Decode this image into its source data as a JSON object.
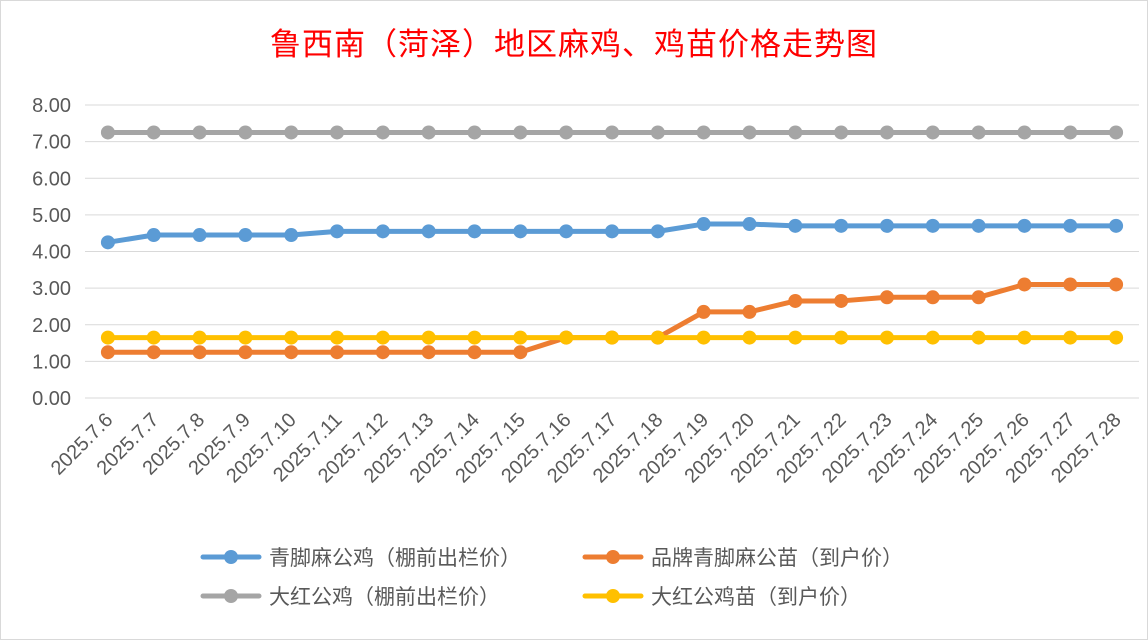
{
  "chart_data": {
    "type": "line",
    "title": "鲁西南（菏泽）地区麻鸡、鸡苗价格走势图",
    "xlabel": "",
    "ylabel": "",
    "ylim": [
      0,
      8
    ],
    "yticks": [
      "0.00",
      "1.00",
      "2.00",
      "3.00",
      "4.00",
      "5.00",
      "6.00",
      "7.00",
      "8.00"
    ],
    "grid": true,
    "legend_position": "bottom",
    "categories": [
      "2025.7.6",
      "2025.7.7",
      "2025.7.8",
      "2025.7.9",
      "2025.7.10",
      "2025.7.11",
      "2025.7.12",
      "2025.7.13",
      "2025.7.14",
      "2025.7.15",
      "2025.7.16",
      "2025.7.17",
      "2025.7.18",
      "2025.7.19",
      "2025.7.20",
      "2025.7.21",
      "2025.7.22",
      "2025.7.23",
      "2025.7.24",
      "2025.7.25",
      "2025.7.26",
      "2025.7.27",
      "2025.7.28"
    ],
    "series": [
      {
        "name": "青脚麻公鸡（棚前出栏价）",
        "color": "#5b9bd5",
        "values": [
          4.25,
          4.45,
          4.45,
          4.45,
          4.45,
          4.55,
          4.55,
          4.55,
          4.55,
          4.55,
          4.55,
          4.55,
          4.55,
          4.75,
          4.75,
          4.7,
          4.7,
          4.7,
          4.7,
          4.7,
          4.7,
          4.7,
          4.7
        ]
      },
      {
        "name": "品牌青脚麻公苗（到户价）",
        "color": "#ed7d31",
        "values": [
          1.25,
          1.25,
          1.25,
          1.25,
          1.25,
          1.25,
          1.25,
          1.25,
          1.25,
          1.25,
          1.65,
          1.65,
          1.65,
          2.35,
          2.35,
          2.65,
          2.65,
          2.75,
          2.75,
          2.75,
          3.1,
          3.1,
          3.1
        ]
      },
      {
        "name": "大红公鸡（棚前出栏价）",
        "color": "#a5a5a5",
        "values": [
          7.25,
          7.25,
          7.25,
          7.25,
          7.25,
          7.25,
          7.25,
          7.25,
          7.25,
          7.25,
          7.25,
          7.25,
          7.25,
          7.25,
          7.25,
          7.25,
          7.25,
          7.25,
          7.25,
          7.25,
          7.25,
          7.25,
          7.25
        ]
      },
      {
        "name": "大红公鸡苗（到户价）",
        "color": "#ffc000",
        "values": [
          1.65,
          1.65,
          1.65,
          1.65,
          1.65,
          1.65,
          1.65,
          1.65,
          1.65,
          1.65,
          1.65,
          1.65,
          1.65,
          1.65,
          1.65,
          1.65,
          1.65,
          1.65,
          1.65,
          1.65,
          1.65,
          1.65,
          1.65
        ]
      }
    ]
  }
}
